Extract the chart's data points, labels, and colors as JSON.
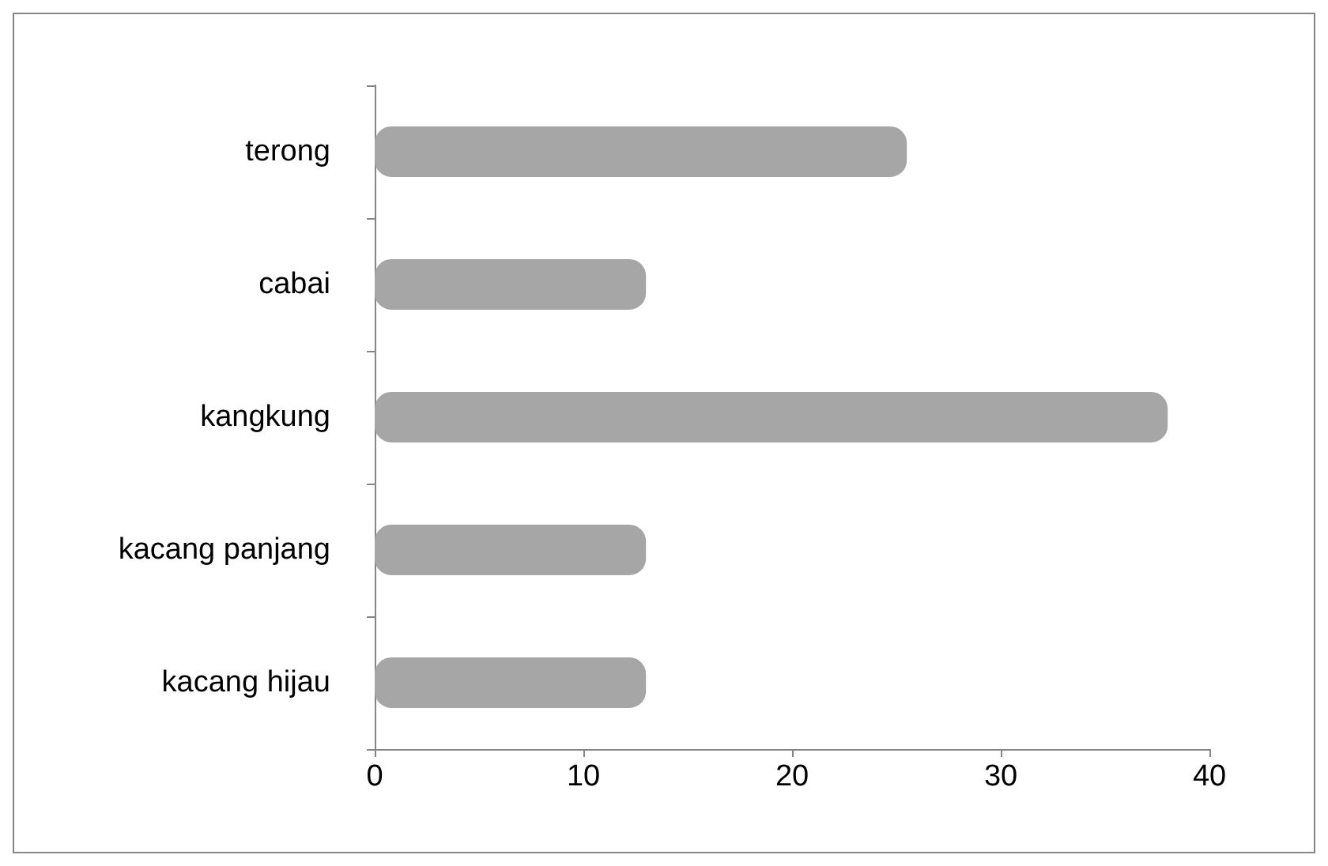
{
  "chart_data": {
    "type": "bar",
    "orientation": "horizontal",
    "categories": [
      "terong",
      "cabai",
      "kangkung",
      "kacang panjang",
      "kacang hijau"
    ],
    "values": [
      25.5,
      13,
      38,
      13,
      13
    ],
    "color": "#a6a6a6",
    "xlim": [
      0,
      40
    ],
    "xticks": [
      0,
      10,
      20,
      30,
      40
    ],
    "grid": false
  }
}
